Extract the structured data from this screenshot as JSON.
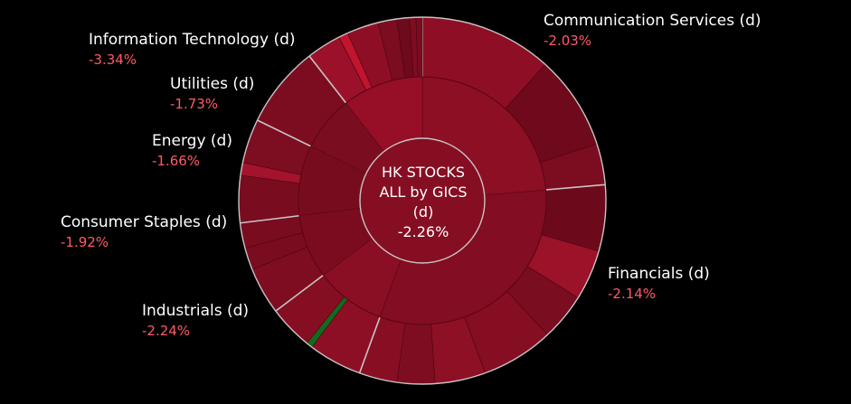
{
  "chart_data": {
    "type": "sunburst",
    "title": "HK STOCKS ALL by GICS",
    "center": {
      "line1": "HK STOCKS",
      "line2": "ALL by GICS",
      "line3": "(d)",
      "value": "-2.26%"
    },
    "total_change": -2.26,
    "colors": {
      "background": "#000000",
      "separator": "#c9c3c5",
      "negative_text": "#ff5a67",
      "positive": "#0f6b1e"
    },
    "sectors": [
      {
        "name": "Communication Services (d)",
        "change_label": "-2.03%",
        "change": -2.03,
        "start_deg": 0,
        "end_deg": 85,
        "color": "#8c0f24",
        "children": [
          {
            "start_deg": 0,
            "end_deg": 42,
            "color": "#8e0f25"
          },
          {
            "start_deg": 42,
            "end_deg": 72,
            "color": "#6e0a1c"
          },
          {
            "start_deg": 72,
            "end_deg": 85,
            "color": "#7c0c20"
          }
        ]
      },
      {
        "name": "Financials (d)",
        "change_label": "-2.14%",
        "change": -2.14,
        "start_deg": 85,
        "end_deg": 200,
        "color": "#830d22",
        "children": [
          {
            "start_deg": 85,
            "end_deg": 106,
            "color": "#6c0a1c"
          },
          {
            "start_deg": 106,
            "end_deg": 122,
            "color": "#9b1229"
          },
          {
            "start_deg": 122,
            "end_deg": 137,
            "color": "#7a0d20"
          },
          {
            "start_deg": 137,
            "end_deg": 160,
            "color": "#850e22"
          },
          {
            "start_deg": 160,
            "end_deg": 176,
            "color": "#8d1025"
          },
          {
            "start_deg": 176,
            "end_deg": 188,
            "color": "#7e0d21"
          },
          {
            "start_deg": 188,
            "end_deg": 200,
            "color": "#880f23"
          }
        ]
      },
      {
        "name": "Industrials (d)",
        "change_label": "-2.24%",
        "change": -2.24,
        "start_deg": 200,
        "end_deg": 233,
        "color": "#8a0f24",
        "children": [
          {
            "start_deg": 200,
            "end_deg": 217,
            "color": "#8d0f25"
          },
          {
            "start_deg": 217,
            "end_deg": 219,
            "color": "#0f6b1e"
          },
          {
            "start_deg": 219,
            "end_deg": 233,
            "color": "#860e22"
          }
        ]
      },
      {
        "name": "Consumer Staples (d)",
        "change_label": "-1.92%",
        "change": -1.92,
        "start_deg": 233,
        "end_deg": 263,
        "color": "#7b0c20",
        "children": [
          {
            "start_deg": 233,
            "end_deg": 248,
            "color": "#7f0d21"
          },
          {
            "start_deg": 248,
            "end_deg": 255,
            "color": "#7a0c20"
          },
          {
            "start_deg": 255,
            "end_deg": 263,
            "color": "#790c1f"
          }
        ]
      },
      {
        "name": "Energy (d)",
        "change_label": "-1.66%",
        "change": -1.66,
        "start_deg": 263,
        "end_deg": 296,
        "color": "#780c1f",
        "children": [
          {
            "start_deg": 263,
            "end_deg": 278,
            "color": "#7a0c20"
          },
          {
            "start_deg": 278,
            "end_deg": 282,
            "color": "#a3142c"
          },
          {
            "start_deg": 282,
            "end_deg": 296,
            "color": "#7d0d21"
          }
        ]
      },
      {
        "name": "Utilities (d)",
        "change_label": "-1.73%",
        "change": -1.73,
        "start_deg": 296,
        "end_deg": 322,
        "color": "#7a0d20",
        "children": [
          {
            "start_deg": 296,
            "end_deg": 322,
            "color": "#7c0d20"
          }
        ]
      },
      {
        "name": "Information Technology (d)",
        "change_label": "-3.34%",
        "change": -3.34,
        "start_deg": 322,
        "end_deg": 360,
        "color": "#960f27",
        "children": [
          {
            "start_deg": 322,
            "end_deg": 333,
            "color": "#9a1129"
          },
          {
            "start_deg": 333,
            "end_deg": 336,
            "color": "#c1142f"
          },
          {
            "start_deg": 336,
            "end_deg": 346,
            "color": "#8e0f25"
          },
          {
            "start_deg": 346,
            "end_deg": 352,
            "color": "#7c0c20"
          },
          {
            "start_deg": 352,
            "end_deg": 356,
            "color": "#6d0a1c"
          },
          {
            "start_deg": 356,
            "end_deg": 358,
            "color": "#7e0d21"
          },
          {
            "start_deg": 358,
            "end_deg": 360,
            "color": "#7a0c20"
          }
        ]
      }
    ]
  }
}
